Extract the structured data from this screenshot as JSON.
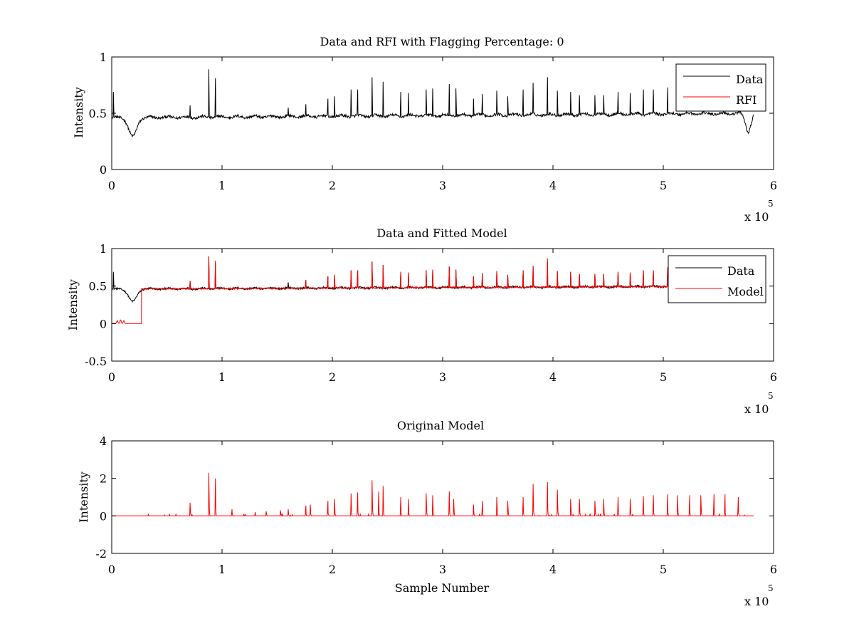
{
  "chart_data": [
    {
      "type": "line",
      "title": "Data and RFI with Flagging Percentage: 0",
      "xlabel": "",
      "ylabel": "Intensity",
      "xlim": [
        0,
        6
      ],
      "ylim": [
        0,
        1
      ],
      "x_ticks": [
        0,
        1,
        2,
        3,
        4,
        5,
        6
      ],
      "y_ticks": [
        0,
        0.5,
        1
      ],
      "x_tick_labels": [
        "0",
        "1",
        "2",
        "3",
        "4",
        "5",
        "6"
      ],
      "y_tick_labels": [
        "0",
        "0.5",
        "1"
      ],
      "x_multiplier": {
        "base": "x 10",
        "exponent": "5"
      },
      "x_data_end": 5.82,
      "grid": false,
      "legend_position": "top-right",
      "series": [
        {
          "name": "Data",
          "color": "#000000",
          "baseline_start": 0.46,
          "baseline_end": 0.5,
          "noise": 0.012,
          "peaks": [
            [
              0.015,
              0.69
            ],
            [
              0.71,
              0.57
            ],
            [
              0.88,
              0.89
            ],
            [
              0.94,
              0.81
            ],
            [
              1.6,
              0.55
            ],
            [
              1.76,
              0.58
            ],
            [
              1.96,
              0.63
            ],
            [
              2.02,
              0.65
            ],
            [
              2.17,
              0.71
            ],
            [
              2.23,
              0.71
            ],
            [
              2.36,
              0.82
            ],
            [
              2.46,
              0.78
            ],
            [
              2.62,
              0.69
            ],
            [
              2.69,
              0.68
            ],
            [
              2.85,
              0.71
            ],
            [
              2.91,
              0.72
            ],
            [
              3.06,
              0.76
            ],
            [
              3.12,
              0.72
            ],
            [
              3.28,
              0.63
            ],
            [
              3.36,
              0.67
            ],
            [
              3.49,
              0.7
            ],
            [
              3.59,
              0.65
            ],
            [
              3.73,
              0.71
            ],
            [
              3.82,
              0.77
            ],
            [
              3.95,
              0.82
            ],
            [
              4.04,
              0.7
            ],
            [
              4.16,
              0.69
            ],
            [
              4.24,
              0.66
            ],
            [
              4.38,
              0.66
            ],
            [
              4.46,
              0.66
            ],
            [
              4.59,
              0.69
            ],
            [
              4.7,
              0.68
            ],
            [
              4.82,
              0.71
            ],
            [
              4.91,
              0.71
            ],
            [
              5.04,
              0.73
            ]
          ],
          "dips": [
            [
              0.19,
              0.29,
              0.05
            ],
            [
              5.77,
              0.34,
              0.035
            ]
          ]
        },
        {
          "name": "RFI",
          "color": "#ff0000",
          "values": []
        }
      ]
    },
    {
      "type": "line",
      "title": "Data and Fitted Model",
      "xlabel": "",
      "ylabel": "Intensity",
      "xlim": [
        0,
        6
      ],
      "ylim": [
        -0.5,
        1
      ],
      "x_ticks": [
        0,
        1,
        2,
        3,
        4,
        5,
        6
      ],
      "y_ticks": [
        -0.5,
        0,
        0.5,
        1
      ],
      "x_tick_labels": [
        "0",
        "1",
        "2",
        "3",
        "4",
        "5",
        "6"
      ],
      "y_tick_labels": [
        "-0.5",
        "0",
        "0.5",
        "1"
      ],
      "x_multiplier": {
        "base": "x 10",
        "exponent": "5"
      },
      "x_data_end": 5.82,
      "grid": false,
      "legend_position": "top-right",
      "series": [
        {
          "name": "Data",
          "color": "#000000"
        },
        {
          "name": "Model",
          "color": "#ff0000",
          "zero_until": 0.27,
          "small_bumps": [
            [
              0.05,
              0.04
            ],
            [
              0.08,
              0.05
            ],
            [
              0.11,
              0.04
            ]
          ],
          "peaks": [
            [
              0.71,
              0.57
            ],
            [
              0.88,
              0.9
            ],
            [
              0.94,
              0.84
            ],
            [
              1.76,
              0.58
            ],
            [
              1.96,
              0.63
            ],
            [
              2.02,
              0.65
            ],
            [
              2.17,
              0.71
            ],
            [
              2.23,
              0.71
            ],
            [
              2.36,
              0.83
            ],
            [
              2.46,
              0.78
            ],
            [
              2.62,
              0.69
            ],
            [
              2.69,
              0.68
            ],
            [
              2.85,
              0.71
            ],
            [
              2.91,
              0.72
            ],
            [
              3.06,
              0.76
            ],
            [
              3.12,
              0.72
            ],
            [
              3.28,
              0.63
            ],
            [
              3.36,
              0.67
            ],
            [
              3.49,
              0.7
            ],
            [
              3.59,
              0.65
            ],
            [
              3.73,
              0.71
            ],
            [
              3.82,
              0.77
            ],
            [
              3.95,
              0.87
            ],
            [
              4.04,
              0.7
            ],
            [
              4.16,
              0.69
            ],
            [
              4.24,
              0.66
            ],
            [
              4.38,
              0.66
            ],
            [
              4.46,
              0.66
            ],
            [
              4.59,
              0.69
            ],
            [
              4.7,
              0.68
            ],
            [
              4.82,
              0.71
            ],
            [
              4.91,
              0.71
            ],
            [
              5.04,
              0.75
            ]
          ]
        }
      ]
    },
    {
      "type": "line",
      "title": "Original Model",
      "xlabel": "Sample Number",
      "ylabel": "Intensity",
      "xlim": [
        0,
        6
      ],
      "ylim": [
        -2,
        4
      ],
      "x_ticks": [
        0,
        1,
        2,
        3,
        4,
        5,
        6
      ],
      "y_ticks": [
        -2,
        0,
        2,
        4
      ],
      "x_tick_labels": [
        "0",
        "1",
        "2",
        "3",
        "4",
        "5",
        "6"
      ],
      "y_tick_labels": [
        "-2",
        "0",
        "2",
        "4"
      ],
      "x_multiplier": {
        "base": "x 10",
        "exponent": "5"
      },
      "x_data_end": 5.82,
      "grid": false,
      "series": [
        {
          "color": "#ff0000",
          "baseline": 0,
          "peaks": [
            [
              0.71,
              0.7
            ],
            [
              0.88,
              2.3
            ],
            [
              0.94,
              2.0
            ],
            [
              1.09,
              0.35
            ],
            [
              1.3,
              0.2
            ],
            [
              1.4,
              0.25
            ],
            [
              1.53,
              0.3
            ],
            [
              1.6,
              0.35
            ],
            [
              1.76,
              0.55
            ],
            [
              1.8,
              0.6
            ],
            [
              1.96,
              0.8
            ],
            [
              2.02,
              0.9
            ],
            [
              2.17,
              1.2
            ],
            [
              2.23,
              1.25
            ],
            [
              2.36,
              1.9
            ],
            [
              2.42,
              1.3
            ],
            [
              2.46,
              1.6
            ],
            [
              2.62,
              1.0
            ],
            [
              2.69,
              0.9
            ],
            [
              2.85,
              1.2
            ],
            [
              2.91,
              1.1
            ],
            [
              3.06,
              1.3
            ],
            [
              3.1,
              0.9
            ],
            [
              3.28,
              0.6
            ],
            [
              3.36,
              0.8
            ],
            [
              3.49,
              1.0
            ],
            [
              3.59,
              0.8
            ],
            [
              3.73,
              1.0
            ],
            [
              3.82,
              1.7
            ],
            [
              3.95,
              1.8
            ],
            [
              4.04,
              1.4
            ],
            [
              4.16,
              0.9
            ],
            [
              4.24,
              0.9
            ],
            [
              4.38,
              0.8
            ],
            [
              4.46,
              0.9
            ],
            [
              4.59,
              1.0
            ],
            [
              4.7,
              0.9
            ],
            [
              4.82,
              1.05
            ],
            [
              4.91,
              1.1
            ],
            [
              5.04,
              1.15
            ],
            [
              5.13,
              1.1
            ],
            [
              5.24,
              1.1
            ],
            [
              5.34,
              1.1
            ],
            [
              5.46,
              1.15
            ],
            [
              5.56,
              1.15
            ],
            [
              5.68,
              1.0
            ]
          ]
        }
      ]
    }
  ]
}
